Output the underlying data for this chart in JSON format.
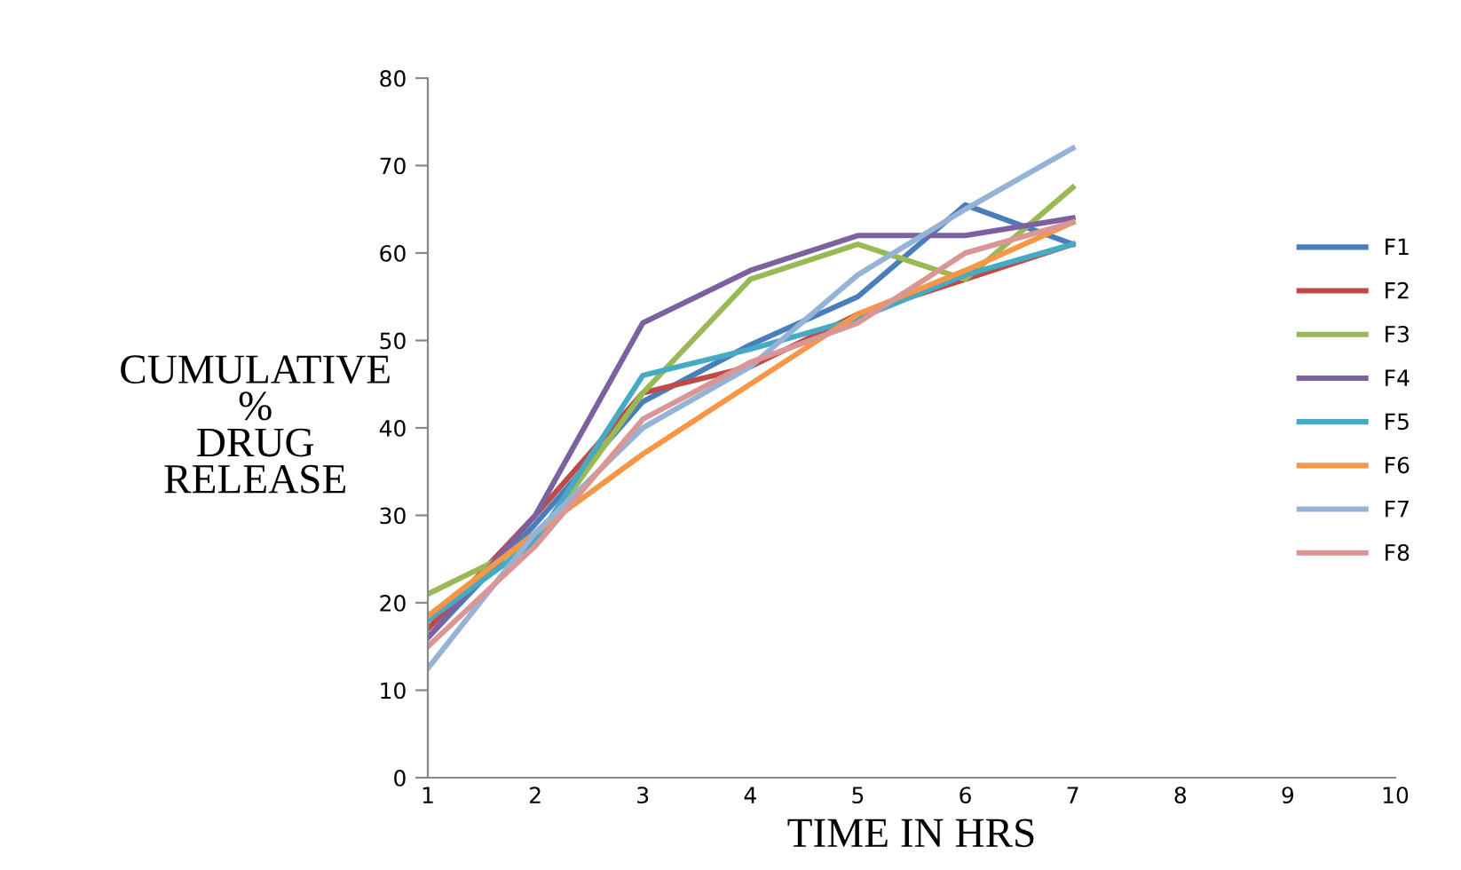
{
  "chart_data": {
    "type": "line",
    "xlabel": "TIME IN HRS",
    "ylabel": "CUMULATIVE\n%\nDRUG\nRELEASE",
    "x": [
      1,
      2,
      3,
      4,
      5,
      6,
      7
    ],
    "xlim": [
      1,
      10
    ],
    "xticks": [
      1,
      2,
      3,
      4,
      5,
      6,
      7,
      8,
      9,
      10
    ],
    "ylim": [
      0,
      80
    ],
    "yticks": [
      0,
      10,
      20,
      30,
      40,
      50,
      60,
      70,
      80
    ],
    "grid": false,
    "legend": "right",
    "marker": "none",
    "line_style": "solid",
    "series": [
      {
        "name": "F1",
        "color": "#4a7ebb",
        "values": [
          16,
          29,
          43,
          49.5,
          55,
          65.5,
          61
        ]
      },
      {
        "name": "F2",
        "color": "#be4b48",
        "values": [
          17,
          30,
          44,
          47,
          53,
          57,
          61
        ]
      },
      {
        "name": "F3",
        "color": "#98b954",
        "values": [
          21,
          27,
          44,
          57,
          61,
          57,
          67.5
        ]
      },
      {
        "name": "F4",
        "color": "#7d60a0",
        "values": [
          16,
          30,
          52,
          58,
          62,
          62,
          64
        ]
      },
      {
        "name": "F5",
        "color": "#46aac5",
        "values": [
          18,
          27,
          46,
          49,
          52.5,
          57.5,
          61
        ]
      },
      {
        "name": "F6",
        "color": "#f79646",
        "values": [
          18.5,
          28,
          37,
          45,
          53,
          58,
          63.5
        ]
      },
      {
        "name": "F7",
        "color": "#95b3d7",
        "values": [
          12.5,
          28,
          40,
          47,
          57.5,
          65,
          72
        ]
      },
      {
        "name": "F8",
        "color": "#d99694",
        "values": [
          15,
          26.5,
          41,
          47.5,
          52,
          60,
          63.5
        ]
      }
    ]
  }
}
